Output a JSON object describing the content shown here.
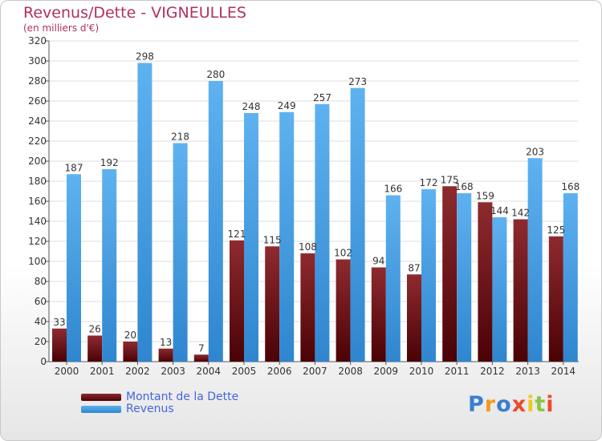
{
  "title": "Revenus/Dette - VIGNEULLES",
  "subtitle": "(en milliers d'€)",
  "logo": {
    "text": "Proxiti",
    "colors": [
      "#3a7fd0",
      "#f29a1f",
      "#3a7fd0",
      "#e84c2c",
      "#f2c81f",
      "#8cc63f",
      "#e84c2c"
    ]
  },
  "colors": {
    "dette": "#7a0a10",
    "revenus": "#4da3e8"
  },
  "chart_data": {
    "type": "bar",
    "title": "Revenus/Dette - VIGNEULLES",
    "ylabel": "(en milliers d'€)",
    "categories": [
      "2000",
      "2001",
      "2002",
      "2003",
      "2004",
      "2005",
      "2006",
      "2007",
      "2008",
      "2009",
      "2010",
      "2011",
      "2012",
      "2013",
      "2014"
    ],
    "series": [
      {
        "name": "Montant de la Dette",
        "values": [
          33,
          26,
          20,
          13,
          7,
          121,
          115,
          108,
          102,
          94,
          87,
          175,
          159,
          142,
          125
        ]
      },
      {
        "name": "Revenus",
        "values": [
          187,
          192,
          298,
          218,
          280,
          248,
          249,
          257,
          273,
          166,
          172,
          168,
          144,
          203,
          168
        ]
      }
    ],
    "ylim": [
      0,
      320
    ],
    "yticks": [
      0,
      20,
      40,
      60,
      80,
      100,
      120,
      140,
      160,
      180,
      200,
      220,
      240,
      260,
      280,
      300,
      320
    ],
    "grid": true,
    "legend": "bottom-left"
  }
}
